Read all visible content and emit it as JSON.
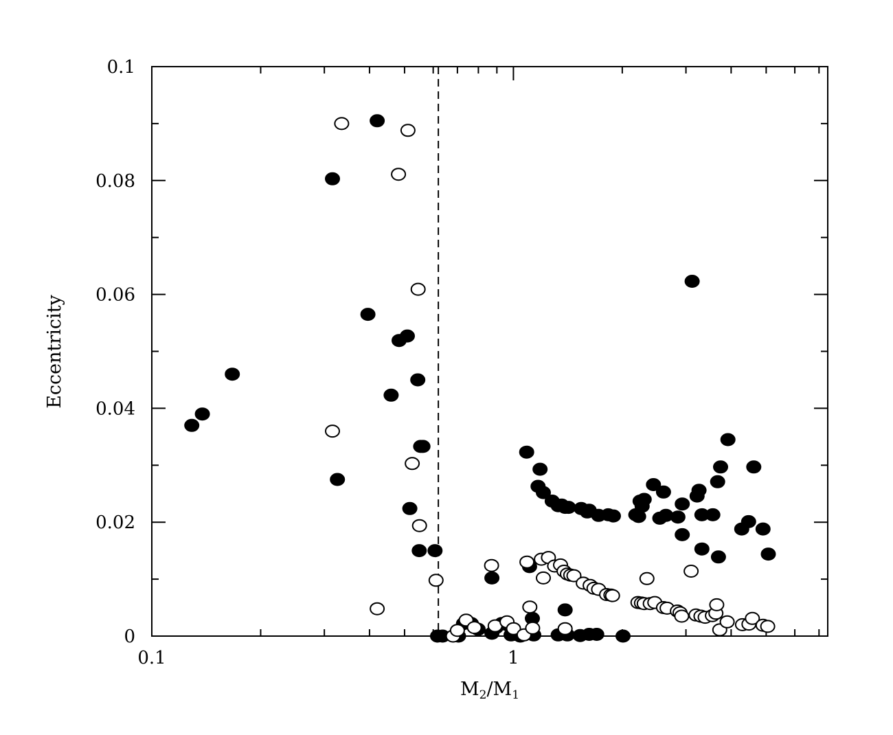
{
  "chart_data": {
    "type": "scatter",
    "title": "",
    "xlabel": "M2/M1",
    "xlabel_main_1": "M",
    "xlabel_sub_1": "2",
    "xlabel_sep": "/M",
    "xlabel_sub_2": "1",
    "ylabel": "Eccentricity",
    "xscale": "log",
    "xlim": [
      0.1,
      7.4
    ],
    "ylim": [
      0,
      0.1
    ],
    "x_tick_labels": [
      {
        "value": 0.1,
        "label": "0.1"
      },
      {
        "value": 1,
        "label": "1"
      }
    ],
    "y_tick_labels": [
      {
        "value": 0,
        "label": "0"
      },
      {
        "value": 0.02,
        "label": "0.02"
      },
      {
        "value": 0.04,
        "label": "0.04"
      },
      {
        "value": 0.06,
        "label": "0.06"
      },
      {
        "value": 0.08,
        "label": "0.08"
      },
      {
        "value": 0.1,
        "label": "0.1"
      }
    ],
    "grid": false,
    "reference_line": {
      "orientation": "vertical",
      "x": 0.62,
      "style": "dashed"
    },
    "series": [
      {
        "marker": "filled-circle",
        "color": "#000000",
        "points": [
          [
            0.129,
            0.037
          ],
          [
            0.138,
            0.039
          ],
          [
            0.167,
            0.046
          ],
          [
            0.316,
            0.0803
          ],
          [
            0.326,
            0.0275
          ],
          [
            0.42,
            0.0905
          ],
          [
            0.396,
            0.0565
          ],
          [
            0.459,
            0.0423
          ],
          [
            0.483,
            0.0519
          ],
          [
            0.509,
            0.0527
          ],
          [
            0.517,
            0.0224
          ],
          [
            0.544,
            0.045
          ],
          [
            0.554,
            0.0333
          ],
          [
            0.562,
            0.0333
          ],
          [
            0.549,
            0.015
          ],
          [
            0.607,
            0.015
          ],
          [
            0.617,
            0
          ],
          [
            0.637,
            0
          ],
          [
            0.705,
            0
          ],
          [
            0.728,
            0.0022
          ],
          [
            0.765,
            0.0022
          ],
          [
            0.799,
            0.0012
          ],
          [
            0.872,
            0.0102
          ],
          [
            0.872,
            0.0005
          ],
          [
            0.895,
            0.0015
          ],
          [
            0.928,
            0.0022
          ],
          [
            0.96,
            0.002
          ],
          [
            0.985,
            0.0002
          ],
          [
            1.01,
            0.0003
          ],
          [
            1.045,
            0
          ],
          [
            1.088,
            0.0323
          ],
          [
            1.108,
            0.0122
          ],
          [
            1.128,
            0.0031
          ],
          [
            1.138,
            0.0002
          ],
          [
            1.17,
            0.0263
          ],
          [
            1.185,
            0.0293
          ],
          [
            1.21,
            0.0252
          ],
          [
            1.28,
            0.0237
          ],
          [
            1.33,
            0.0229
          ],
          [
            1.36,
            0.023
          ],
          [
            1.39,
            0.0226
          ],
          [
            1.42,
            0.0226
          ],
          [
            1.33,
            0.0002
          ],
          [
            1.39,
            0.0046
          ],
          [
            1.41,
            0.0002
          ],
          [
            1.54,
            0.0224
          ],
          [
            1.6,
            0.0218
          ],
          [
            1.62,
            0.0221
          ],
          [
            1.72,
            0.0212
          ],
          [
            1.83,
            0.0213
          ],
          [
            1.89,
            0.0211
          ],
          [
            1.53,
            0.0001
          ],
          [
            1.62,
            0.0003
          ],
          [
            1.7,
            0.0003
          ],
          [
            2.01,
            0
          ],
          [
            2.18,
            0.0213
          ],
          [
            2.22,
            0.021
          ],
          [
            2.24,
            0.0237
          ],
          [
            2.27,
            0.0228
          ],
          [
            2.3,
            0.024
          ],
          [
            2.44,
            0.0266
          ],
          [
            2.54,
            0.0207
          ],
          [
            2.6,
            0.0253
          ],
          [
            2.64,
            0.0212
          ],
          [
            2.85,
            0.0209
          ],
          [
            2.93,
            0.0232
          ],
          [
            2.93,
            0.0178
          ],
          [
            3.12,
            0.0623
          ],
          [
            3.22,
            0.0246
          ],
          [
            3.26,
            0.0256
          ],
          [
            3.32,
            0.0153
          ],
          [
            3.32,
            0.0213
          ],
          [
            3.56,
            0.0213
          ],
          [
            3.67,
            0.0271
          ],
          [
            3.69,
            0.0139
          ],
          [
            3.74,
            0.0297
          ],
          [
            3.92,
            0.0345
          ],
          [
            4.28,
            0.0188
          ],
          [
            4.47,
            0.0201
          ],
          [
            4.62,
            0.0297
          ],
          [
            4.9,
            0.0188
          ],
          [
            5.07,
            0.0144
          ]
        ]
      },
      {
        "marker": "open-circle",
        "color": "#000000",
        "points": [
          [
            0.316,
            0.036
          ],
          [
            0.335,
            0.09
          ],
          [
            0.42,
            0.0048
          ],
          [
            0.481,
            0.0811
          ],
          [
            0.511,
            0.0888
          ],
          [
            0.525,
            0.0303
          ],
          [
            0.545,
            0.0609
          ],
          [
            0.55,
            0.0194
          ],
          [
            0.611,
            0.0098
          ],
          [
            0.681,
            0
          ],
          [
            0.7,
            0.001
          ],
          [
            0.74,
            0.0028
          ],
          [
            0.78,
            0.0015
          ],
          [
            0.87,
            0.0124
          ],
          [
            0.89,
            0.0018
          ],
          [
            0.96,
            0.0025
          ],
          [
            1.001,
            0.0013
          ],
          [
            1.07,
            0.0002
          ],
          [
            1.09,
            0.013
          ],
          [
            1.11,
            0.0051
          ],
          [
            1.13,
            0.0014
          ],
          [
            1.195,
            0.0135
          ],
          [
            1.21,
            0.0102
          ],
          [
            1.25,
            0.0138
          ],
          [
            1.3,
            0.0123
          ],
          [
            1.35,
            0.0125
          ],
          [
            1.38,
            0.0114
          ],
          [
            1.41,
            0.0109
          ],
          [
            1.44,
            0.0107
          ],
          [
            1.47,
            0.0106
          ],
          [
            1.39,
            0.0013
          ],
          [
            1.56,
            0.0093
          ],
          [
            1.63,
            0.0089
          ],
          [
            1.67,
            0.0084
          ],
          [
            1.72,
            0.0082
          ],
          [
            1.81,
            0.0073
          ],
          [
            1.86,
            0.0072
          ],
          [
            1.88,
            0.0071
          ],
          [
            2.21,
            0.0059
          ],
          [
            2.26,
            0.0058
          ],
          [
            2.3,
            0.0057
          ],
          [
            2.34,
            0.0101
          ],
          [
            2.39,
            0.0057
          ],
          [
            2.46,
            0.0059
          ],
          [
            2.6,
            0.005
          ],
          [
            2.66,
            0.0049
          ],
          [
            2.84,
            0.0044
          ],
          [
            2.89,
            0.0041
          ],
          [
            2.92,
            0.0035
          ],
          [
            3.1,
            0.0114
          ],
          [
            3.2,
            0.0037
          ],
          [
            3.3,
            0.0035
          ],
          [
            3.39,
            0.0033
          ],
          [
            3.55,
            0.0036
          ],
          [
            3.63,
            0.004
          ],
          [
            3.65,
            0.0055
          ],
          [
            3.72,
            0.0011
          ],
          [
            3.9,
            0.0025
          ],
          [
            4.3,
            0.002
          ],
          [
            4.48,
            0.0021
          ],
          [
            4.58,
            0.0031
          ],
          [
            4.9,
            0.0019
          ],
          [
            5.05,
            0.0017
          ]
        ]
      }
    ]
  }
}
